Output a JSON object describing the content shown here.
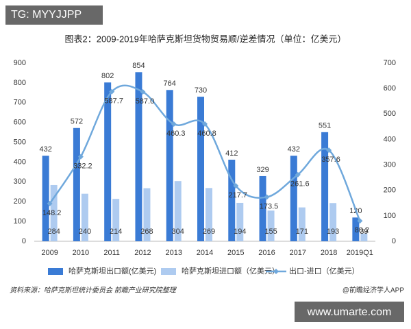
{
  "watermark_top": "TG: MYYJJPP",
  "watermark_bottom": "www.umarte.com",
  "source": "资料来源：哈萨克斯坦统计委员会 前瞻产业研究院整理",
  "brand": "@前瞻经济学人APP",
  "chart_data": {
    "type": "bar-line",
    "title": "图表2：2009-2019年哈萨克斯坦货物贸易顺/逆差情况（单位：亿美元）",
    "categories": [
      "2009",
      "2010",
      "2011",
      "2012",
      "2013",
      "2014",
      "2015",
      "2016",
      "2017",
      "2018",
      "2019Q1"
    ],
    "series": [
      {
        "name": "哈萨克斯坦出口额(亿美元)",
        "color": "#3a7bd5",
        "type": "bar",
        "values": [
          432,
          572,
          802,
          854,
          764,
          730,
          412,
          329,
          432,
          551,
          120
        ]
      },
      {
        "name": "哈萨克斯坦进口额（亿美元）",
        "color": "#aecbf0",
        "type": "bar",
        "values": [
          284,
          240,
          214,
          268,
          304,
          269,
          194,
          155,
          171,
          193,
          39
        ]
      },
      {
        "name": "出口-进口（亿美元）",
        "color": "#6fa8dc",
        "type": "line",
        "axis": "y2",
        "values": [
          148.2,
          332.2,
          587.7,
          587.0,
          460.3,
          460.8,
          217.7,
          173.5,
          261.6,
          357.6,
          80.2
        ],
        "value_labels": [
          "148.2",
          "332.2",
          "587.7",
          "587.0",
          "460.3",
          "460.8",
          "217.7",
          "173.5",
          "261.6",
          "357.6",
          "80.2"
        ]
      }
    ],
    "ylim": [
      0,
      900
    ],
    "yticks": [
      0,
      100,
      200,
      300,
      400,
      500,
      600,
      700,
      800,
      900
    ],
    "y2lim": [
      0,
      700
    ],
    "y2ticks": [
      0,
      100,
      200,
      300,
      400,
      500,
      600,
      700
    ]
  }
}
